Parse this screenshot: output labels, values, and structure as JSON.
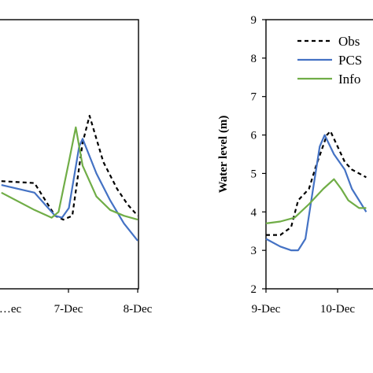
{
  "chart_data": [
    {
      "type": "line",
      "panel": "left",
      "xlabel": "",
      "ylabel": "",
      "xticks": [
        "…ec",
        "7-Dec",
        "8-Dec"
      ],
      "series": [
        {
          "key": "obs",
          "color": "#000000",
          "dash": "5,4",
          "points": [
            [
              0.02,
              4.8
            ],
            [
              0.5,
              4.75
            ],
            [
              0.8,
              3.9
            ],
            [
              0.92,
              3.8
            ],
            [
              1.05,
              3.9
            ],
            [
              1.2,
              5.8
            ],
            [
              1.3,
              6.5
            ],
            [
              1.5,
              5.3
            ],
            [
              1.7,
              4.6
            ],
            [
              1.85,
              4.2
            ],
            [
              2.0,
              3.9
            ]
          ]
        },
        {
          "key": "pcs",
          "color": "#4472C4",
          "dash": "",
          "points": [
            [
              0.02,
              4.7
            ],
            [
              0.5,
              4.5
            ],
            [
              0.8,
              3.9
            ],
            [
              0.9,
              3.85
            ],
            [
              1.0,
              4.1
            ],
            [
              1.15,
              5.7
            ],
            [
              1.2,
              5.9
            ],
            [
              1.4,
              5.0
            ],
            [
              1.6,
              4.3
            ],
            [
              1.8,
              3.7
            ],
            [
              2.0,
              3.25
            ]
          ]
        },
        {
          "key": "info",
          "color": "#70AD47",
          "dash": "",
          "points": [
            [
              0.02,
              4.5
            ],
            [
              0.5,
              4.05
            ],
            [
              0.75,
              3.85
            ],
            [
              0.85,
              4.0
            ],
            [
              1.0,
              5.3
            ],
            [
              1.1,
              6.2
            ],
            [
              1.2,
              5.2
            ],
            [
              1.4,
              4.4
            ],
            [
              1.6,
              4.05
            ],
            [
              1.8,
              3.9
            ],
            [
              2.0,
              3.8
            ]
          ]
        }
      ]
    },
    {
      "type": "line",
      "panel": "right",
      "xlabel": "",
      "ylabel": "Water level (m)",
      "ylim": [
        2,
        9
      ],
      "yticks": [
        2,
        3,
        4,
        5,
        6,
        7,
        8,
        9
      ],
      "xticks": [
        "9-Dec",
        "10-Dec"
      ],
      "legend": {
        "position": "top-right",
        "entries": [
          {
            "key": "obs",
            "label": "Obs"
          },
          {
            "key": "pcs",
            "label": "PCS"
          },
          {
            "key": "info",
            "label": "Info"
          }
        ]
      },
      "series": [
        {
          "key": "obs",
          "color": "#000000",
          "dash": "5,4",
          "points": [
            [
              0.0,
              3.4
            ],
            [
              0.2,
              3.4
            ],
            [
              0.35,
              3.6
            ],
            [
              0.45,
              4.3
            ],
            [
              0.6,
              4.6
            ],
            [
              0.7,
              5.2
            ],
            [
              0.85,
              6.0
            ],
            [
              0.9,
              6.1
            ],
            [
              1.0,
              5.7
            ],
            [
              1.1,
              5.3
            ],
            [
              1.2,
              5.1
            ],
            [
              1.4,
              4.9
            ]
          ]
        },
        {
          "key": "pcs",
          "color": "#4472C4",
          "dash": "",
          "points": [
            [
              0.0,
              3.3
            ],
            [
              0.2,
              3.1
            ],
            [
              0.35,
              3.0
            ],
            [
              0.45,
              3.0
            ],
            [
              0.55,
              3.3
            ],
            [
              0.65,
              4.5
            ],
            [
              0.75,
              5.7
            ],
            [
              0.82,
              6.0
            ],
            [
              0.95,
              5.5
            ],
            [
              1.1,
              5.1
            ],
            [
              1.2,
              4.6
            ],
            [
              1.3,
              4.3
            ],
            [
              1.4,
              4.0
            ]
          ]
        },
        {
          "key": "info",
          "color": "#70AD47",
          "dash": "",
          "points": [
            [
              0.0,
              3.7
            ],
            [
              0.2,
              3.75
            ],
            [
              0.4,
              3.85
            ],
            [
              0.6,
              4.2
            ],
            [
              0.8,
              4.6
            ],
            [
              0.95,
              4.85
            ],
            [
              1.05,
              4.6
            ],
            [
              1.15,
              4.3
            ],
            [
              1.3,
              4.1
            ],
            [
              1.4,
              4.1
            ]
          ]
        }
      ]
    }
  ]
}
